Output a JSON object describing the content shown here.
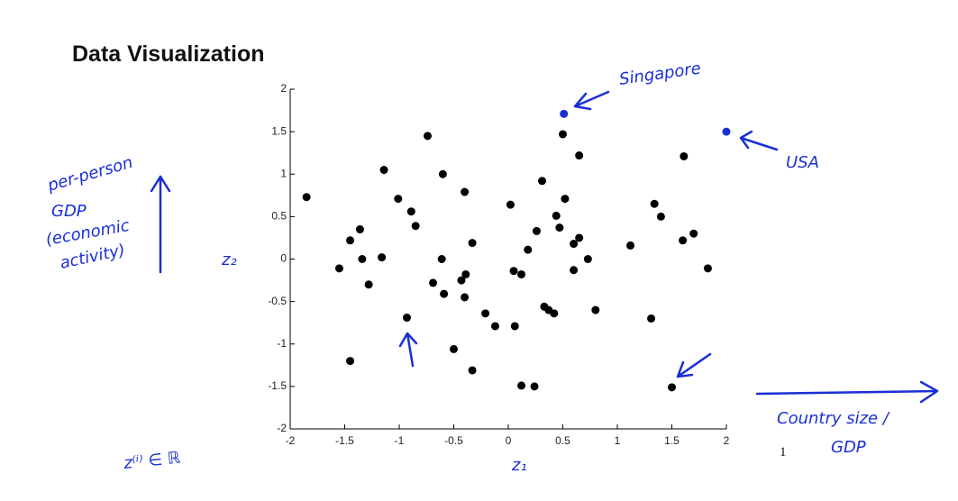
{
  "chart_data": {
    "type": "scatter",
    "title": "Data Visualization",
    "xlim": [
      -2,
      2
    ],
    "ylim": [
      -2,
      2
    ],
    "xticks": [
      -2,
      -1.5,
      -1,
      -0.5,
      0,
      0.5,
      1,
      1.5,
      2
    ],
    "yticks": [
      -2,
      -1.5,
      -1,
      -0.5,
      0,
      0.5,
      1,
      1.5,
      2
    ],
    "series": [
      {
        "color": "#000000",
        "x": [
          -1.85,
          -1.45,
          -1.36,
          -1.55,
          -1.34,
          -1.28,
          -1.16,
          -1.14,
          -1.01,
          -0.89,
          -0.85,
          -0.93,
          -0.74,
          -0.69,
          -0.61,
          -0.6,
          -0.59,
          -0.5,
          -0.4,
          -0.43,
          -0.39,
          -0.4,
          -0.33,
          -0.33,
          -0.21,
          -0.12,
          0.02,
          0.05,
          0.06,
          0.12,
          0.12,
          0.18,
          0.24,
          0.26,
          0.31,
          0.33,
          0.37,
          0.42,
          0.44,
          0.47,
          0.5,
          0.52,
          0.6,
          0.6,
          0.65,
          0.65,
          0.73,
          0.8,
          1.12,
          1.31,
          1.34,
          1.4,
          1.5,
          1.6,
          1.61,
          1.7,
          1.83,
          -1.45
        ],
        "y": [
          0.73,
          0.22,
          0.35,
          -0.11,
          0.0,
          -0.3,
          0.02,
          1.05,
          0.71,
          0.56,
          0.39,
          -0.69,
          1.45,
          -0.28,
          0.0,
          1.0,
          -0.41,
          -1.06,
          0.79,
          -0.25,
          -0.18,
          -0.45,
          0.19,
          -1.31,
          -0.64,
          -0.79,
          0.64,
          -0.14,
          -0.79,
          -0.18,
          -1.49,
          0.11,
          -1.5,
          0.33,
          0.92,
          -0.56,
          -0.6,
          -0.64,
          0.51,
          0.37,
          1.47,
          0.71,
          -0.13,
          0.18,
          0.25,
          1.22,
          0.0,
          -0.6,
          0.16,
          -0.7,
          0.65,
          0.5,
          -1.51,
          0.22,
          1.21,
          0.3,
          -0.11,
          -1.2
        ]
      },
      {
        "color": "#1a2fd6",
        "x": [
          0.51,
          2.0
        ],
        "y": [
          1.71,
          1.5
        ]
      }
    ],
    "annotations": [
      "Singapore",
      "USA",
      "per-person",
      "GDP",
      "(economic",
      "activity)",
      "z₂",
      "z₁",
      "z⁽ⁱ⁾ ∈ ℝ",
      "Country size /",
      "GDP",
      "1"
    ]
  }
}
